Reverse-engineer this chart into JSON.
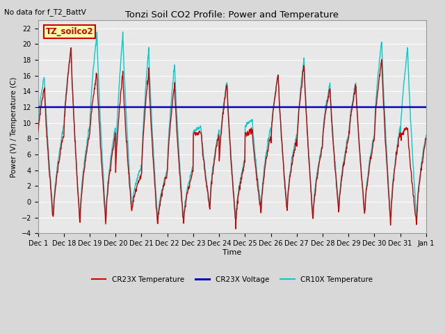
{
  "title": "Tonzi Soil CO2 Profile: Power and Temperature",
  "subtitle": "No data for f_T2_BattV",
  "ylabel": "Power (V) / Temperature (C)",
  "xlabel": "Time",
  "ylim": [
    -4,
    23
  ],
  "yticks": [
    -4,
    -2,
    0,
    2,
    4,
    6,
    8,
    10,
    12,
    14,
    16,
    18,
    20,
    22
  ],
  "legend_items": [
    {
      "label": "CR23X Temperature",
      "color": "#cc0000",
      "lw": 1.0
    },
    {
      "label": "CR23X Voltage",
      "color": "#0000bb",
      "lw": 1.8
    },
    {
      "label": "CR10X Temperature",
      "color": "#00cccc",
      "lw": 1.0
    }
  ],
  "voltage_value": 12.0,
  "bg_color": "#d8d8d8",
  "plot_bg_color": "#e8e8e8",
  "grid_color": "#ffffff",
  "annotation_box": {
    "text": "TZ_soilco2",
    "fc": "#ffffaa",
    "ec": "#cc0000",
    "text_color": "#cc0000"
  },
  "xtick_labels": [
    "Dec 1",
    "Dec 18",
    "Dec 19",
    "Dec 20",
    "Dec 21",
    "Dec 22",
    "Dec 23",
    "Dec 24",
    "Dec 25",
    "Dec 26",
    "Dec 27",
    "Dec 28",
    "Dec 29",
    "Dec 30",
    "Dec 31",
    "Jan 1"
  ],
  "n_per_day": 80,
  "n_days": 15,
  "day_peaks_cr10x": [
    16.0,
    19.5,
    21.5,
    21.3,
    19.5,
    17.5,
    9.5,
    15.5,
    10.5,
    16.2,
    18.2,
    15.0,
    15.2,
    20.5,
    19.5
  ],
  "day_peaks_cr23x": [
    14.5,
    19.5,
    16.5,
    16.5,
    16.7,
    15.0,
    8.8,
    15.0,
    9.0,
    16.0,
    17.5,
    14.5,
    14.8,
    18.0,
    9.5
  ],
  "day_mins_cr10x": [
    -2.0,
    -2.5,
    -2.5,
    -1.0,
    -2.5,
    -2.5,
    -0.5,
    -2.5,
    -1.0,
    -1.0,
    -2.0,
    -1.0,
    -1.5,
    -2.5,
    -2.5
  ],
  "day_mins_cr23x": [
    -2.5,
    -3.0,
    -2.8,
    -1.5,
    -3.0,
    -3.0,
    -1.0,
    -3.0,
    -1.5,
    -1.5,
    -2.5,
    -1.5,
    -2.0,
    -3.0,
    -3.0
  ],
  "day_base_cr10x": [
    9.5,
    9.5,
    9.5,
    4.5,
    4.0,
    4.5,
    9.0,
    5.5,
    9.5,
    8.5,
    7.5,
    8.5,
    8.5,
    9.5,
    8.5
  ],
  "day_base_cr23x": [
    8.5,
    8.5,
    8.5,
    3.5,
    3.5,
    4.0,
    8.5,
    5.0,
    8.5,
    8.0,
    7.0,
    8.0,
    8.0,
    9.0,
    8.0
  ],
  "peak_phase": [
    0.25,
    0.28,
    0.28,
    0.28,
    0.28,
    0.28,
    0.3,
    0.3,
    0.28,
    0.28,
    0.28,
    0.28,
    0.28,
    0.28,
    0.28
  ]
}
